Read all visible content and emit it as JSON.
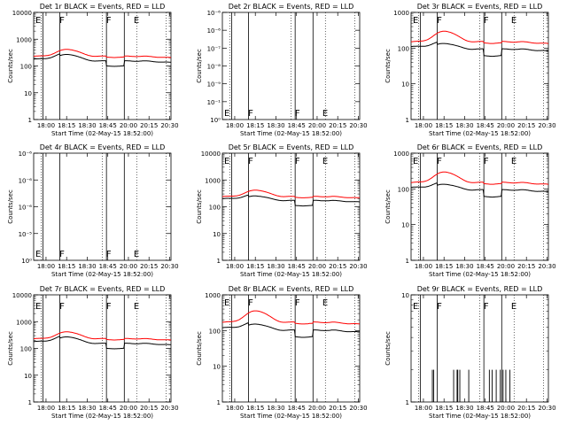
{
  "chart_data": {
    "type": "line",
    "x_ticks": [
      "18:00",
      "18:15",
      "18:30",
      "18:45",
      "20:00",
      "20:15",
      "20:30"
    ],
    "xlabel": "Start Time (02-May-15 18:52:00)",
    "ylabel": "Counts/sec",
    "log_scale_y": true,
    "colors": {
      "events": "#000000",
      "lld": "#ff0000"
    },
    "panels": [
      {
        "title": "Det 1r BLACK = Events, RED = LLD",
        "style": "normal",
        "yticks": [
          "10000",
          "1000",
          "100",
          "10",
          "1"
        ],
        "ylim_exp": [
          0,
          4
        ],
        "events_base": 180,
        "lld_base": 230,
        "events_peak": 320,
        "lld_peak": 420,
        "markers": [
          "E",
          "F",
          "F",
          "E"
        ]
      },
      {
        "title": "Det 2r BLACK = Events, RED = LLD",
        "style": "empty",
        "yticks": [
          "10⁻⁶",
          "10⁻⁶",
          "10⁻⁷",
          "10⁻⁸",
          "10⁻⁹",
          "10⁻¹",
          "10⁰"
        ],
        "markers": [
          "E",
          "F",
          "F",
          "E"
        ]
      },
      {
        "title": "Det 3r BLACK = Events, RED = LLD",
        "style": "normal",
        "yticks": [
          "1000",
          "100",
          "10",
          "1"
        ],
        "ylim_exp": [
          0,
          3
        ],
        "events_base": 110,
        "lld_base": 150,
        "events_peak": 160,
        "lld_peak": 300,
        "markers": [
          "E",
          "F",
          "F",
          "E"
        ]
      },
      {
        "title": "Det 4r BLACK = Events, RED = LLD",
        "style": "empty",
        "yticks": [
          "10⁻⁶",
          "10⁻⁶",
          "10⁻⁶",
          "10⁻⁵",
          "10⁰"
        ],
        "markers": [
          "E",
          "F",
          "F",
          "E"
        ]
      },
      {
        "title": "Det 5r BLACK = Events, RED = LLD",
        "style": "normal",
        "yticks": [
          "10000",
          "1000",
          "100",
          "10",
          "1"
        ],
        "ylim_exp": [
          0,
          4
        ],
        "events_base": 200,
        "lld_base": 240,
        "events_peak": 300,
        "lld_peak": 420,
        "markers": [
          "E",
          "F",
          "F",
          "E"
        ]
      },
      {
        "title": "Det 6r BLACK = Events, RED = LLD",
        "style": "normal",
        "yticks": [
          "1000",
          "100",
          "10",
          "1"
        ],
        "ylim_exp": [
          0,
          3
        ],
        "events_base": 110,
        "lld_base": 150,
        "events_peak": 160,
        "lld_peak": 300,
        "markers": [
          "E",
          "F",
          "F",
          "E"
        ]
      },
      {
        "title": "Det 7r BLACK = Events, RED = LLD",
        "style": "normal",
        "yticks": [
          "10000",
          "1000",
          "100",
          "10",
          "1"
        ],
        "ylim_exp": [
          0,
          4
        ],
        "events_base": 180,
        "lld_base": 230,
        "events_peak": 320,
        "lld_peak": 420,
        "markers": [
          "E",
          "F",
          "F",
          "E"
        ]
      },
      {
        "title": "Det 8r BLACK = Events, RED = LLD",
        "style": "normal",
        "yticks": [
          "1000",
          "100",
          "10",
          "1"
        ],
        "ylim_exp": [
          0,
          3
        ],
        "events_base": 120,
        "lld_base": 170,
        "events_peak": 180,
        "lld_peak": 360,
        "markers": [
          "E",
          "F",
          "F",
          "E"
        ]
      },
      {
        "title": "Det 9r BLACK = Events, RED = LLD",
        "style": "spiky",
        "yticks": [
          "10",
          "1"
        ],
        "ylim_exp": [
          0,
          1
        ],
        "markers": [
          "E",
          "F",
          "F",
          "E"
        ]
      }
    ]
  }
}
